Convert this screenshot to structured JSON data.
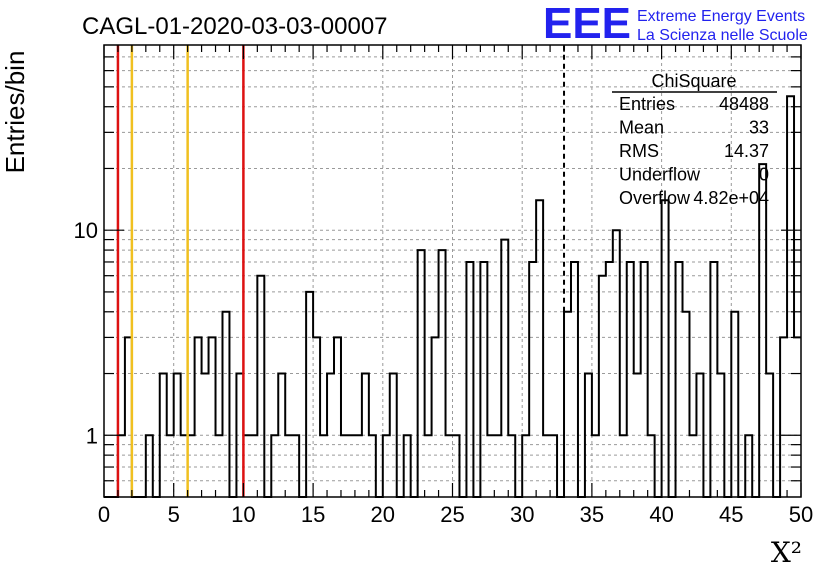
{
  "header": {
    "run_title": "CAGL-01-2020-03-03-00007",
    "logo_mark": "EEE",
    "logo_line1": "Extreme Energy Events",
    "logo_line2": "La Scienza nelle Scuole"
  },
  "stats_box": {
    "title": "ChiSquare",
    "rows": [
      {
        "label": "Entries",
        "value": "48488"
      },
      {
        "label": "Mean",
        "value": "33"
      },
      {
        "label": "RMS",
        "value": "14.37"
      },
      {
        "label": "Underflow",
        "value": "0"
      },
      {
        "label": "Overflow",
        "value": "4.82e+04"
      }
    ]
  },
  "colors": {
    "red_line": "#dd1111",
    "yellow_line": "#f0c020",
    "logo_blue": "#2222ee",
    "grid": "#9a9a9a"
  },
  "chart_data": {
    "type": "histogram",
    "title": "CAGL-01-2020-03-03-00007",
    "xlabel": "X²",
    "ylabel": "Entries/bin",
    "xlim": [
      0,
      50
    ],
    "ylim": [
      0.5,
      80
    ],
    "yscale": "log",
    "bin_width": 0.5,
    "grid": true,
    "x_ticks": [
      "0",
      "5",
      "10",
      "15",
      "20",
      "25",
      "30",
      "35",
      "40",
      "45",
      "50"
    ],
    "y_ticks": [
      {
        "value": 1,
        "label": "1"
      },
      {
        "value": 10,
        "label": "10"
      }
    ],
    "values": [
      0,
      0,
      1,
      3,
      0,
      0,
      1,
      0,
      2,
      1,
      2,
      1,
      1,
      3,
      2,
      3,
      1,
      4,
      0,
      2,
      1,
      1,
      6,
      0,
      1,
      2,
      1,
      1,
      0,
      5,
      3,
      1,
      2,
      3,
      1,
      1,
      1,
      2,
      1,
      0,
      1,
      2,
      0,
      1,
      0,
      8,
      1,
      3,
      8,
      1,
      1,
      0,
      7,
      0,
      7,
      1,
      1,
      9,
      1,
      0,
      1,
      7,
      14,
      1,
      1,
      0,
      4,
      7,
      0,
      2,
      1,
      6,
      7,
      10,
      1,
      7,
      2,
      7,
      1,
      0,
      14,
      0,
      7,
      4,
      1,
      2,
      0,
      7,
      2,
      0,
      4,
      0,
      1,
      0,
      21,
      2,
      0,
      3,
      45,
      3
    ],
    "vertical_lines": [
      {
        "x": 1,
        "color": "red"
      },
      {
        "x": 2,
        "color": "yellow"
      },
      {
        "x": 6,
        "color": "yellow"
      },
      {
        "x": 10,
        "color": "red"
      },
      {
        "x": 33,
        "color": "black",
        "style": "dashed"
      }
    ]
  }
}
